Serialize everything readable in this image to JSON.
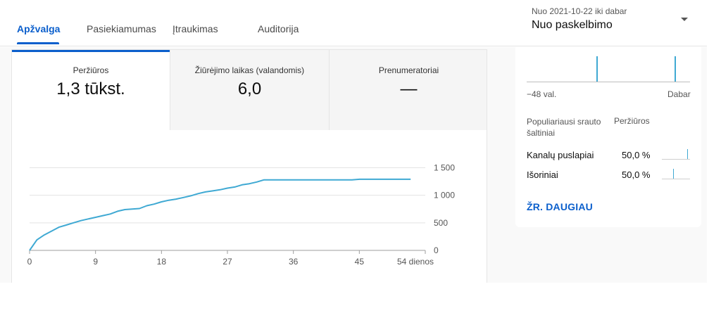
{
  "tabs": [
    {
      "label": "Apžvalga",
      "active": true
    },
    {
      "label": "Pasiekiamumas",
      "active": false
    },
    {
      "label": "Įtraukimas",
      "active": false
    },
    {
      "label": "Auditorija",
      "active": false
    }
  ],
  "date_range": {
    "subtitle": "Nuo 2021-10-22 iki dabar",
    "selected": "Nuo paskelbimo"
  },
  "metrics": [
    {
      "label": "Peržiūros",
      "value": "1,3 tūkst."
    },
    {
      "label": "Žiūrėjimo laikas (valandomis)",
      "value": "6,0"
    },
    {
      "label": "Prenumeratoriai",
      "value": "—"
    }
  ],
  "chart_data": {
    "type": "line",
    "title": "",
    "xlabel": "",
    "ylabel": "",
    "x_tick_labels": [
      "0",
      "9",
      "18",
      "27",
      "36",
      "45",
      "54 dienos"
    ],
    "x_ticks": [
      0,
      9,
      18,
      27,
      36,
      45,
      54
    ],
    "y_tick_labels": [
      "0",
      "500",
      "1 000",
      "1 500"
    ],
    "y_ticks": [
      0,
      500,
      1000,
      1500
    ],
    "xlim": [
      0,
      54
    ],
    "ylim": [
      0,
      1500
    ],
    "grid": true,
    "line_color": "#3fa9d3",
    "series": [
      {
        "x": [
          0,
          1,
          2,
          3,
          4,
          5,
          6,
          7,
          8,
          9,
          10,
          11,
          12,
          13,
          14,
          15,
          16,
          17,
          18,
          19,
          20,
          21,
          22,
          23,
          24,
          25,
          26,
          27,
          28,
          29,
          30,
          31,
          32,
          33,
          34,
          35,
          36,
          37,
          38,
          39,
          40,
          41,
          42,
          43,
          44,
          45,
          46,
          47,
          48,
          49,
          50,
          51,
          52
        ],
        "values": [
          0,
          190,
          280,
          350,
          420,
          460,
          500,
          540,
          570,
          600,
          630,
          660,
          710,
          740,
          750,
          760,
          810,
          840,
          880,
          910,
          930,
          960,
          990,
          1030,
          1060,
          1080,
          1100,
          1130,
          1150,
          1190,
          1210,
          1240,
          1280,
          1280,
          1280,
          1280,
          1280,
          1280,
          1280,
          1280,
          1280,
          1280,
          1280,
          1280,
          1280,
          1290,
          1290,
          1290,
          1290,
          1290,
          1290,
          1290,
          1290
        ]
      }
    ]
  },
  "realtime": {
    "left_label": "−48 val.",
    "right_label": "Dabar"
  },
  "traffic": {
    "header_source": "Populiariausi srauto šaltiniai",
    "header_views": "Peržiūros",
    "rows": [
      {
        "name": "Kanalų puslapiai",
        "value": "50,0 %",
        "share": 0.5
      },
      {
        "name": "Išoriniai",
        "value": "50,0 %",
        "share": 0.5
      }
    ]
  },
  "see_more": "ŽR. DAUGIAU",
  "colors": {
    "accent": "#0b5fcc",
    "line": "#3fa9d3"
  }
}
